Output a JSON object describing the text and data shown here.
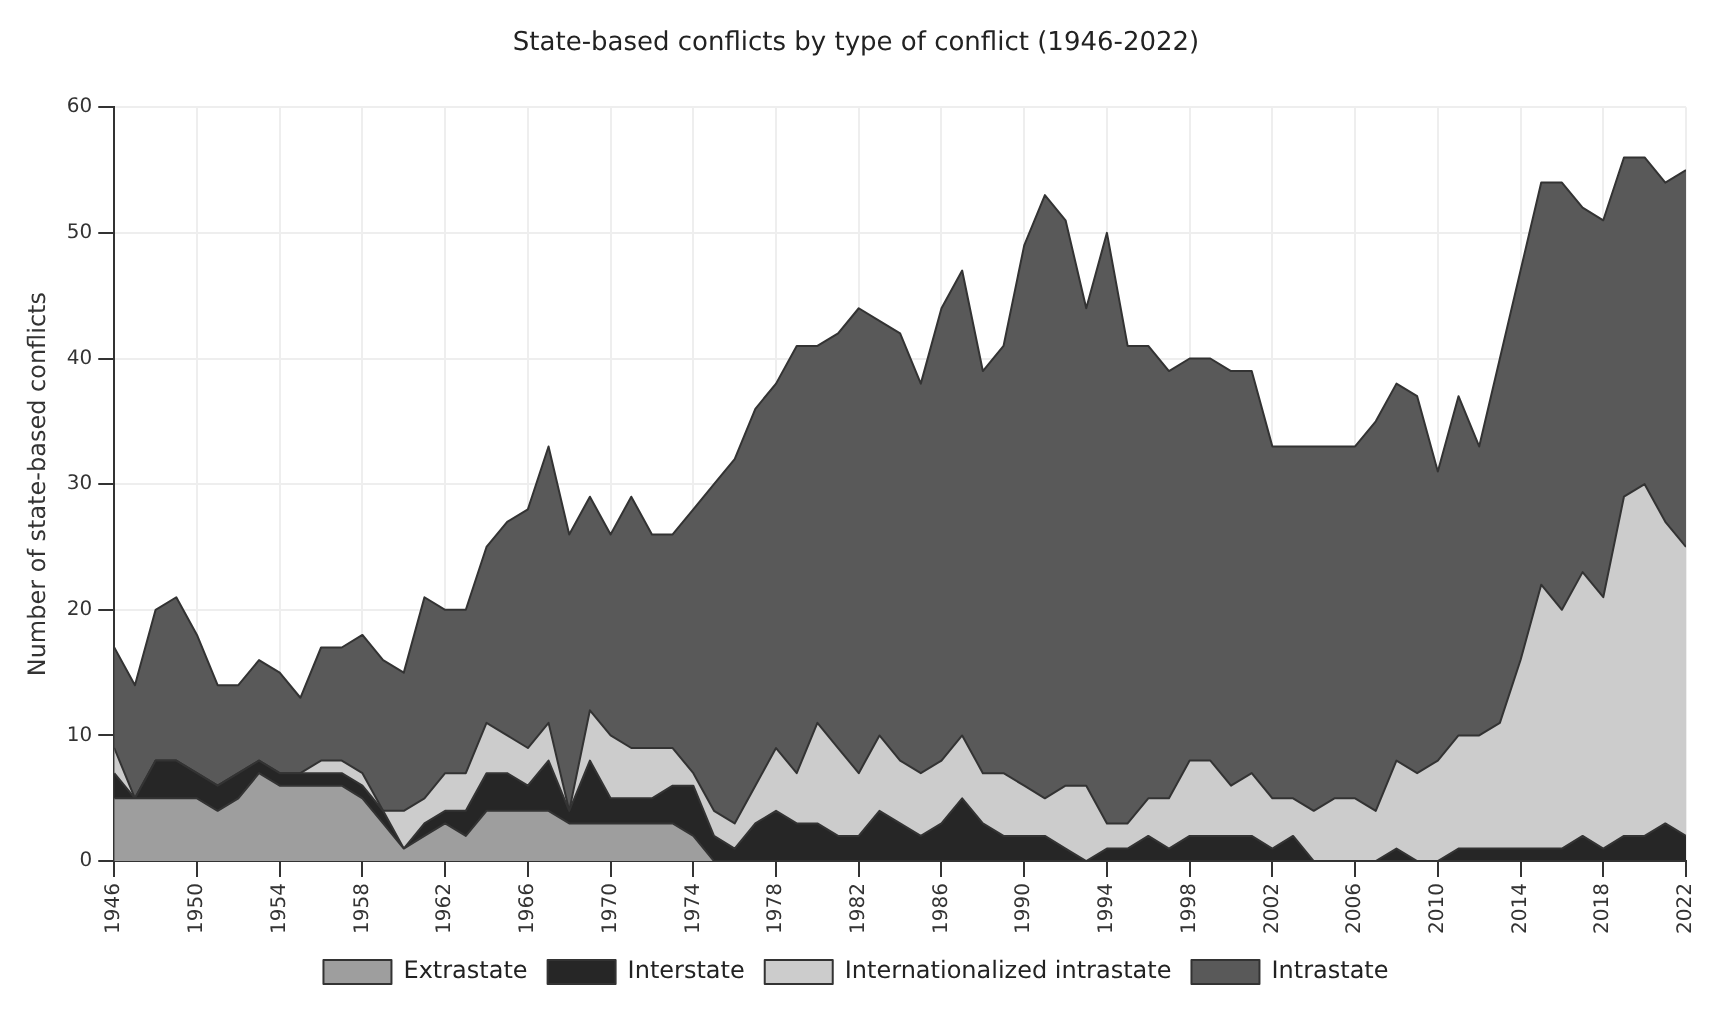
{
  "chart_data": {
    "type": "area",
    "title": "State-based conflicts by type of conflict (1946-2022)",
    "ylabel": "Number of state-based conflicts",
    "x": [
      1946,
      1947,
      1948,
      1949,
      1950,
      1951,
      1952,
      1953,
      1954,
      1955,
      1956,
      1957,
      1958,
      1959,
      1960,
      1961,
      1962,
      1963,
      1964,
      1965,
      1966,
      1967,
      1968,
      1969,
      1970,
      1971,
      1972,
      1973,
      1974,
      1975,
      1976,
      1977,
      1978,
      1979,
      1980,
      1981,
      1982,
      1983,
      1984,
      1985,
      1986,
      1987,
      1988,
      1989,
      1990,
      1991,
      1992,
      1993,
      1994,
      1995,
      1996,
      1997,
      1998,
      1999,
      2000,
      2001,
      2002,
      2003,
      2004,
      2005,
      2006,
      2007,
      2008,
      2009,
      2010,
      2011,
      2012,
      2013,
      2014,
      2015,
      2016,
      2017,
      2018,
      2019,
      2020,
      2021,
      2022
    ],
    "xlim": [
      1946,
      2022
    ],
    "xticks": [
      1946,
      1950,
      1954,
      1958,
      1962,
      1966,
      1970,
      1974,
      1978,
      1982,
      1986,
      1990,
      1994,
      1998,
      2002,
      2006,
      2010,
      2014,
      2018,
      2022
    ],
    "ylim": [
      0,
      60
    ],
    "yticks": [
      0,
      10,
      20,
      30,
      40,
      50,
      60
    ],
    "stacked": true,
    "grid": true,
    "legend": "bottom",
    "series": [
      {
        "name": "Extrastate",
        "color": "#9e9e9e",
        "values": [
          5,
          5,
          5,
          5,
          5,
          4,
          5,
          7,
          6,
          6,
          6,
          6,
          5,
          3,
          1,
          2,
          3,
          2,
          4,
          4,
          4,
          4,
          3,
          3,
          3,
          3,
          3,
          3,
          2,
          0,
          0,
          0,
          0,
          0,
          0,
          0,
          0,
          0,
          0,
          0,
          0,
          0,
          0,
          0,
          0,
          0,
          0,
          0,
          0,
          0,
          0,
          0,
          0,
          0,
          0,
          0,
          0,
          0,
          0,
          0,
          0,
          0,
          0,
          0,
          0,
          0,
          0,
          0,
          0,
          0,
          0,
          0,
          0,
          0,
          0,
          0,
          0
        ]
      },
      {
        "name": "Interstate",
        "color": "#262626",
        "values": [
          2,
          0,
          3,
          3,
          2,
          2,
          2,
          1,
          1,
          1,
          1,
          1,
          1,
          1,
          0,
          1,
          1,
          2,
          3,
          3,
          2,
          4,
          1,
          5,
          2,
          2,
          2,
          3,
          4,
          2,
          1,
          3,
          4,
          3,
          3,
          2,
          2,
          4,
          3,
          2,
          3,
          5,
          3,
          2,
          2,
          2,
          1,
          0,
          1,
          1,
          2,
          1,
          2,
          2,
          2,
          2,
          1,
          2,
          0,
          0,
          0,
          0,
          1,
          0,
          0,
          1,
          1,
          1,
          1,
          1,
          1,
          2,
          1,
          2,
          2,
          3,
          2
        ]
      },
      {
        "name": "Internationalized intrastate",
        "color": "#cccccc",
        "values": [
          2,
          0,
          0,
          0,
          0,
          0,
          0,
          0,
          0,
          0,
          1,
          1,
          1,
          0,
          3,
          2,
          3,
          3,
          4,
          3,
          3,
          3,
          0,
          4,
          5,
          4,
          4,
          3,
          1,
          2,
          2,
          3,
          5,
          4,
          8,
          7,
          5,
          6,
          5,
          5,
          5,
          5,
          4,
          5,
          4,
          3,
          5,
          6,
          2,
          2,
          3,
          4,
          6,
          6,
          4,
          5,
          4,
          3,
          4,
          5,
          5,
          4,
          7,
          7,
          8,
          9,
          9,
          10,
          15,
          21,
          19,
          21,
          20,
          27,
          28,
          24,
          23
        ]
      },
      {
        "name": "Intrastate",
        "color": "#595959",
        "values": [
          8,
          9,
          12,
          13,
          11,
          8,
          7,
          8,
          8,
          6,
          9,
          9,
          11,
          12,
          11,
          16,
          13,
          13,
          14,
          17,
          19,
          22,
          22,
          17,
          16,
          20,
          17,
          17,
          21,
          26,
          29,
          30,
          29,
          34,
          30,
          33,
          37,
          33,
          34,
          31,
          36,
          37,
          32,
          34,
          43,
          48,
          45,
          38,
          47,
          38,
          36,
          34,
          32,
          32,
          33,
          32,
          28,
          28,
          29,
          28,
          28,
          31,
          30,
          30,
          23,
          27,
          23,
          29,
          31,
          32,
          34,
          29,
          30,
          27,
          26,
          27,
          30
        ]
      }
    ]
  }
}
